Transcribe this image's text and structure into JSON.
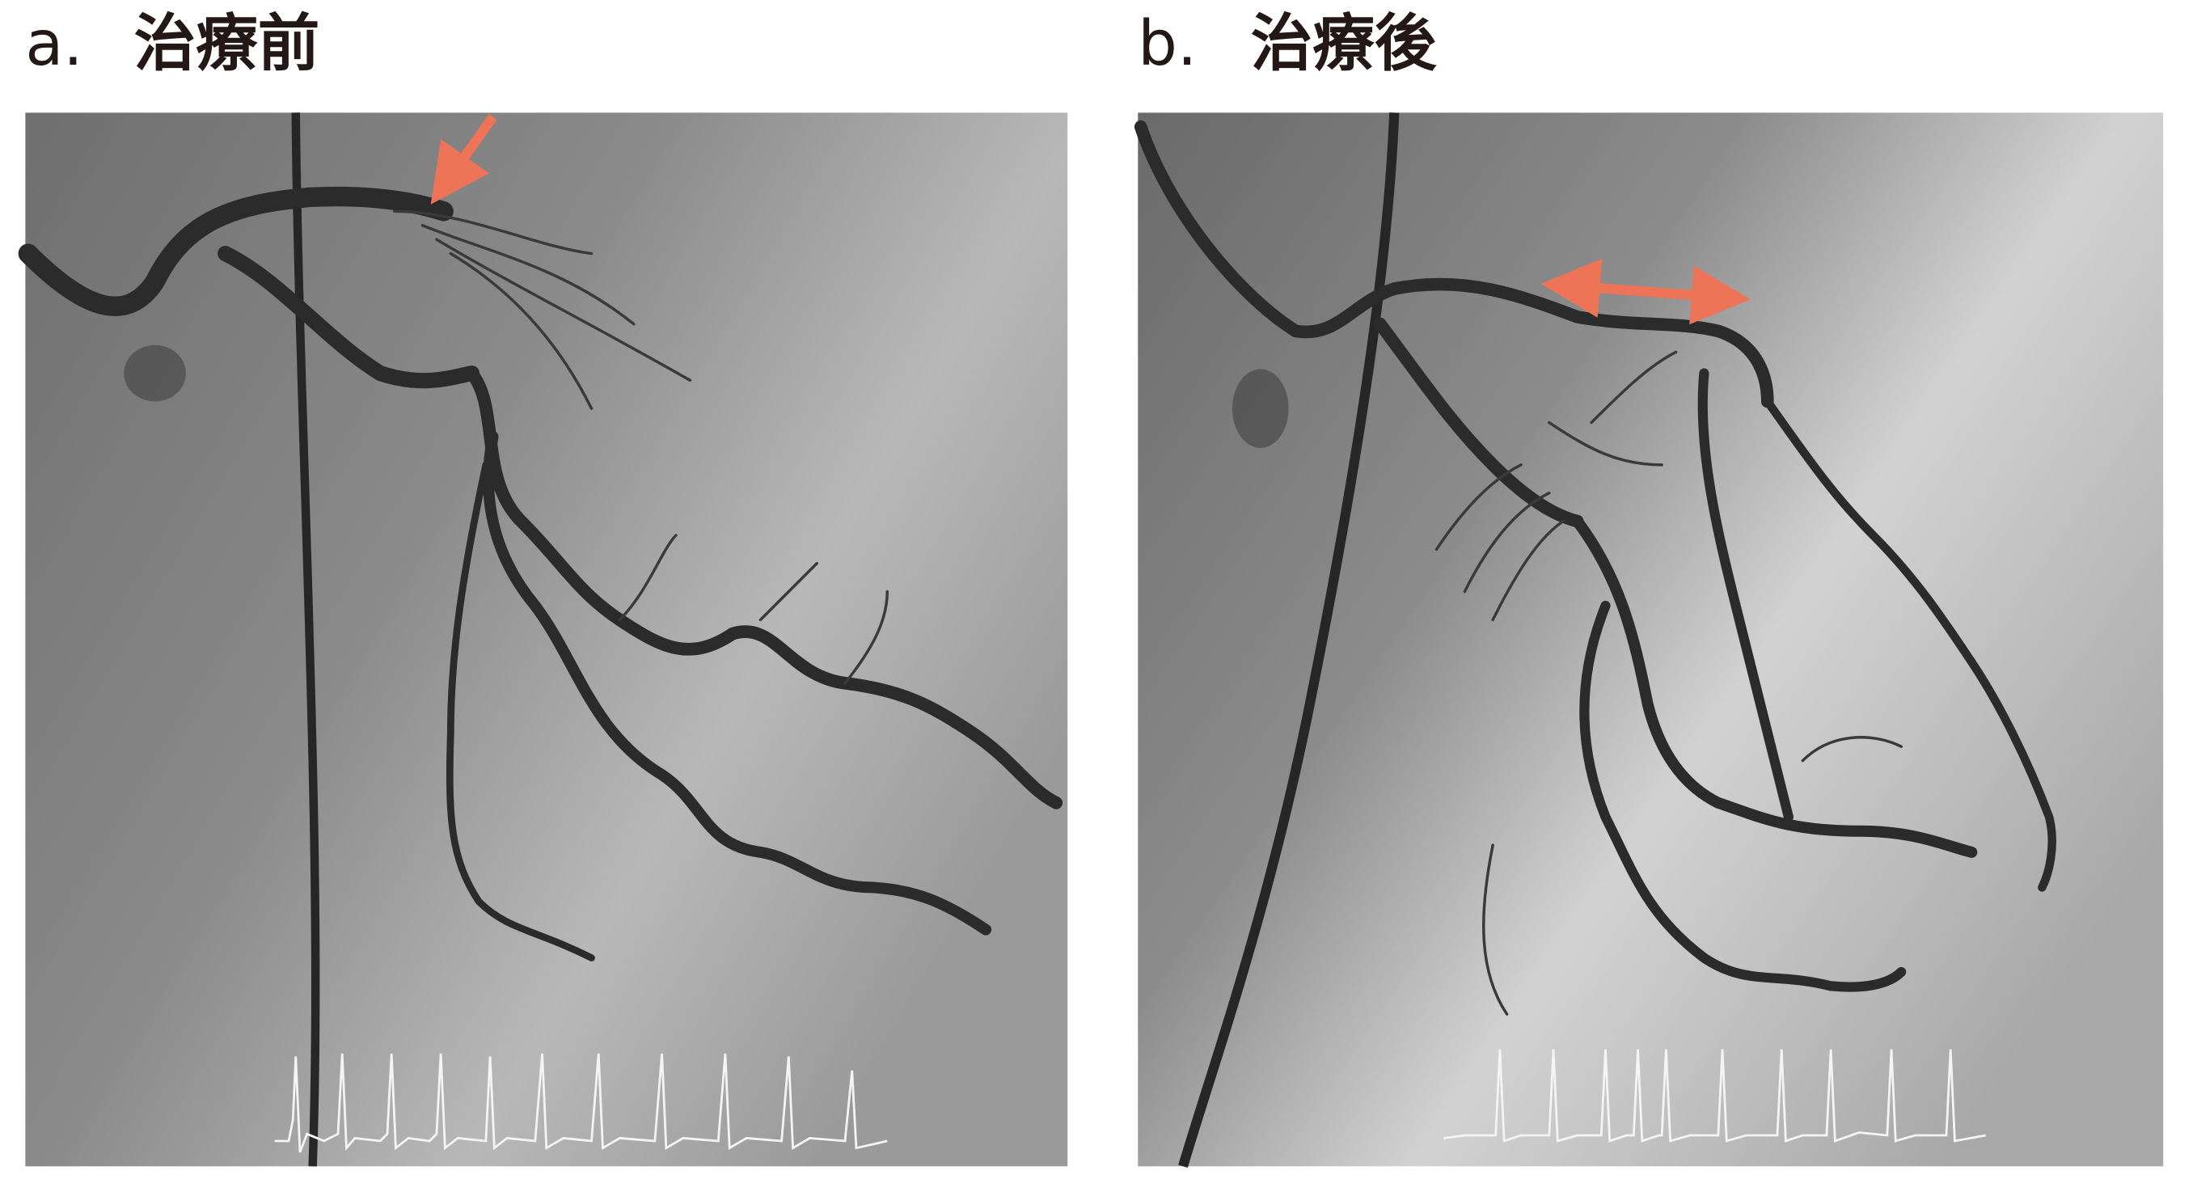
{
  "panels": [
    {
      "letter": "a.",
      "title": "治療前"
    },
    {
      "letter": "b.",
      "title": "治療後"
    }
  ]
}
